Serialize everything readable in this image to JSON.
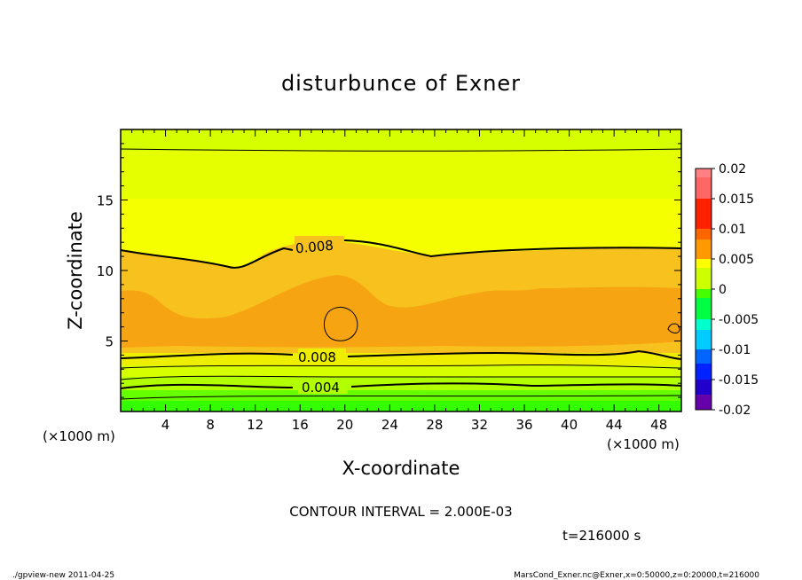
{
  "chart_data": {
    "type": "heatmap",
    "title": "disturbunce of Exner",
    "xlabel": "X-coordinate",
    "ylabel": "Z-coordinate",
    "xunit_left": "(×1000 m)",
    "xunit_right": "(×1000 m)",
    "xlim": [
      0,
      50
    ],
    "ylim": [
      0,
      20
    ],
    "xticks": [
      "4",
      "8",
      "12",
      "16",
      "20",
      "24",
      "28",
      "32",
      "36",
      "40",
      "44",
      "48"
    ],
    "yticks": [
      "5",
      "10",
      "15"
    ],
    "colorbar": {
      "ticks": [
        "0.02",
        "0.015",
        "0.01",
        "0.005",
        "0",
        "-0.005",
        "-0.01",
        "-0.015",
        "-0.02"
      ],
      "range": [
        -0.02,
        0.02
      ]
    },
    "bands": [
      {
        "z_top": 20,
        "value": 0.004
      },
      {
        "z_top": 18.5,
        "value": 0.005
      },
      {
        "z_top": 14.5,
        "value": 0.006
      },
      {
        "z_top": 11.3,
        "value": 0.0085
      },
      {
        "z_top": 8.3,
        "value": 0.0095
      },
      {
        "z_top": 4.2,
        "value": 0.007
      },
      {
        "z_top": 3.4,
        "value": 0.0055
      },
      {
        "z_top": 2.7,
        "value": 0.0045
      },
      {
        "z_top": 2.2,
        "value": 0.003
      },
      {
        "z_top": 1.7,
        "value": 0.0015
      }
    ],
    "contour_labels": [
      "0.008",
      "0.008",
      "0.004"
    ],
    "contour_interval": "CONTOUR INTERVAL = 2.000E-03",
    "time": "t=216000 s"
  },
  "footer": {
    "left": "./gpview-new   2011-04-25",
    "right": "MarsCond_Exner.nc@Exner,x=0:50000,z=0:20000,t=216000"
  },
  "colors": {
    "frame": "#000000",
    "green_light": "#ccff00",
    "yellow": "#f5ff00",
    "orange_light": "#f7c21e",
    "orange": "#f7a413"
  }
}
